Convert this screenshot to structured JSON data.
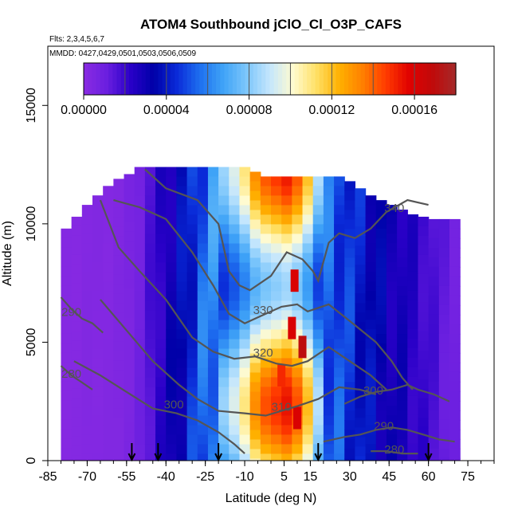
{
  "chart_data": {
    "type": "heatmap",
    "title": "ATOM4 Southbound jClO_Cl_O3P_CAFS",
    "flights_label": "Flts: 2,3,4,5,6,7",
    "dates_label": "MMDD: 0427,0429,0501,0503,0506,0509",
    "xlabel": "Latitude (deg N)",
    "ylabel": "Altitude (m)",
    "xlim": [
      -85,
      85
    ],
    "ylim": [
      0,
      17500
    ],
    "xticks": [
      "-85",
      "-70",
      "-55",
      "-40",
      "-25",
      "-10",
      "5",
      "15",
      "30",
      "45",
      "60",
      "75"
    ],
    "xtick_values": [
      -85,
      -70,
      -55,
      -40,
      -25,
      -10,
      5,
      15,
      30,
      45,
      60,
      75
    ],
    "yticks": [
      "0",
      "5000",
      "10000",
      "15000"
    ],
    "ytick_values": [
      0,
      5000,
      10000,
      15000
    ],
    "colorbar": {
      "min": 0,
      "max": 0.00018,
      "tick_labels": [
        "0.00000",
        "0.00004",
        "0.00008",
        "0.00012",
        "0.00016"
      ],
      "tick_values": [
        0,
        4e-05,
        8e-05,
        0.00012,
        0.00016
      ],
      "colors": [
        "#8a2be2",
        "#6a1fe0",
        "#2a00c8",
        "#0000a8",
        "#0a2ad8",
        "#1e70f0",
        "#3fa3f7",
        "#7cc6fb",
        "#c4e6fd",
        "#fffbd0",
        "#ffe066",
        "#ffb000",
        "#ff7f00",
        "#ff3a00",
        "#e00000",
        "#c00a0a",
        "#a52a2a"
      ]
    },
    "heat_columns": [
      {
        "lat": -78,
        "top": 9800,
        "v": 2e-06
      },
      {
        "lat": -74,
        "top": 10300,
        "v": 2e-06
      },
      {
        "lat": -70,
        "top": 10800,
        "v": 3e-06
      },
      {
        "lat": -66,
        "top": 11200,
        "v": 3e-06
      },
      {
        "lat": -62,
        "top": 11600,
        "v": 3e-06
      },
      {
        "lat": -58,
        "top": 11900,
        "v": 4e-06
      },
      {
        "lat": -54,
        "top": 12100,
        "v": 6e-06
      },
      {
        "lat": -50,
        "top": 12400,
        "v": 1e-05
      },
      {
        "lat": -46,
        "top": 12400,
        "v": 1.8e-05
      },
      {
        "lat": -42,
        "top": 12400,
        "v": 2.6e-05
      },
      {
        "lat": -38,
        "top": 12400,
        "v": 3.2e-05
      },
      {
        "lat": -34,
        "top": 12400,
        "v": 4e-05
      },
      {
        "lat": -30,
        "top": 12400,
        "v": 5e-05
      },
      {
        "lat": -26,
        "top": 12400,
        "v": 6e-05
      },
      {
        "lat": -22,
        "top": 12400,
        "v": 6.8e-05
      },
      {
        "lat": -18,
        "top": 12400,
        "v": 7.6e-05
      },
      {
        "lat": -14,
        "top": 12400,
        "v": 8.6e-05
      },
      {
        "lat": -10,
        "top": 12400,
        "v": 0.0001
      },
      {
        "lat": -6,
        "top": 12200,
        "v": 0.00012
      },
      {
        "lat": -2,
        "top": 12000,
        "v": 0.00013
      },
      {
        "lat": 2,
        "top": 12000,
        "v": 0.000135
      },
      {
        "lat": 6,
        "top": 12000,
        "v": 0.00014
      },
      {
        "lat": 10,
        "top": 12000,
        "v": 0.00013
      },
      {
        "lat": 14,
        "top": 12000,
        "v": 0.00011
      },
      {
        "lat": 18,
        "top": 12000,
        "v": 8e-05
      },
      {
        "lat": 22,
        "top": 12000,
        "v": 6e-05
      },
      {
        "lat": 26,
        "top": 12000,
        "v": 5.6e-05
      },
      {
        "lat": 30,
        "top": 11800,
        "v": 5e-05
      },
      {
        "lat": 34,
        "top": 11500,
        "v": 4.6e-05
      },
      {
        "lat": 38,
        "top": 11200,
        "v": 4e-05
      },
      {
        "lat": 42,
        "top": 11000,
        "v": 3.6e-05
      },
      {
        "lat": 46,
        "top": 10800,
        "v": 3.2e-05
      },
      {
        "lat": 50,
        "top": 10600,
        "v": 3e-05
      },
      {
        "lat": 54,
        "top": 10400,
        "v": 2.6e-05
      },
      {
        "lat": 58,
        "top": 10300,
        "v": 2.2e-05
      },
      {
        "lat": 62,
        "top": 10200,
        "v": 1.8e-05
      },
      {
        "lat": 66,
        "top": 10200,
        "v": 1.4e-05
      },
      {
        "lat": 70,
        "top": 10200,
        "v": 1e-05
      }
    ],
    "hot_spots": [
      {
        "lat": 8,
        "alt": 5600,
        "v": 0.00016
      },
      {
        "lat": 12,
        "alt": 4800,
        "v": 0.00017
      },
      {
        "lat": 10,
        "alt": 1800,
        "v": 0.00016
      },
      {
        "lat": 9,
        "alt": 7600,
        "v": 0.00016
      },
      {
        "lat": 4,
        "alt": 3600,
        "v": 0.00015
      }
    ],
    "contours": [
      {
        "label": "340",
        "label_lat": 47,
        "label_alt": 10500,
        "points": [
          [
            -48,
            12300
          ],
          [
            -40,
            11500
          ],
          [
            -28,
            11000
          ],
          [
            -20,
            10000
          ],
          [
            -16,
            8000
          ],
          [
            -12,
            7400
          ],
          [
            -8,
            7200
          ],
          [
            0,
            7800
          ],
          [
            6,
            8800
          ],
          [
            12,
            8500
          ],
          [
            16,
            8000
          ],
          [
            18,
            7600
          ],
          [
            22,
            9200
          ],
          [
            26,
            9600
          ],
          [
            32,
            9400
          ],
          [
            38,
            9800
          ],
          [
            44,
            10500
          ],
          [
            52,
            11000
          ],
          [
            60,
            10800
          ]
        ]
      },
      {
        "label": "330",
        "label_lat": -3,
        "label_alt": 6200,
        "points": [
          [
            -60,
            11000
          ],
          [
            -50,
            10700
          ],
          [
            -40,
            10200
          ],
          [
            -30,
            8800
          ],
          [
            -22,
            7400
          ],
          [
            -16,
            6200
          ],
          [
            -10,
            5800
          ],
          [
            -4,
            6100
          ],
          [
            4,
            6500
          ],
          [
            10,
            6600
          ],
          [
            14,
            6300
          ],
          [
            22,
            6600
          ],
          [
            30,
            5900
          ],
          [
            40,
            5000
          ],
          [
            46,
            4200
          ],
          [
            50,
            3500
          ],
          [
            54,
            3000
          ]
        ]
      },
      {
        "label": "320",
        "label_lat": -3,
        "label_alt": 4400,
        "points": [
          [
            -65,
            11000
          ],
          [
            -58,
            9000
          ],
          [
            -50,
            8000
          ],
          [
            -40,
            6800
          ],
          [
            -30,
            5200
          ],
          [
            -22,
            4600
          ],
          [
            -14,
            4300
          ],
          [
            -6,
            4400
          ],
          [
            2,
            4100
          ],
          [
            8,
            4000
          ],
          [
            14,
            4200
          ],
          [
            22,
            4800
          ],
          [
            30,
            4200
          ],
          [
            38,
            3600
          ],
          [
            44,
            3000
          ]
        ]
      },
      {
        "label": "310",
        "label_lat": 4,
        "label_alt": 2100,
        "points": [
          [
            -65,
            6800
          ],
          [
            -55,
            5500
          ],
          [
            -45,
            4200
          ],
          [
            -35,
            3200
          ],
          [
            -28,
            2600
          ],
          [
            -20,
            2100
          ],
          [
            -10,
            2000
          ],
          [
            -2,
            1900
          ],
          [
            4,
            2100
          ],
          [
            10,
            2300
          ],
          [
            18,
            2600
          ],
          [
            26,
            3100
          ],
          [
            34,
            3000
          ],
          [
            40,
            2800
          ]
        ]
      },
      {
        "label": "300",
        "label_lat": -37,
        "label_alt": 2200,
        "points": [
          [
            -75,
            4200
          ],
          [
            -65,
            3600
          ],
          [
            -55,
            2900
          ],
          [
            -45,
            2200
          ],
          [
            -36,
            2000
          ],
          [
            -28,
            1700
          ],
          [
            -20,
            1200
          ],
          [
            -14,
            700
          ],
          [
            -10,
            300
          ]
        ]
      },
      {
        "label": "300",
        "label_lat": 39,
        "label_alt": 2800,
        "points": [
          [
            28,
            2400
          ],
          [
            34,
            2700
          ],
          [
            40,
            2900
          ],
          [
            46,
            3000
          ],
          [
            52,
            3200
          ],
          [
            56,
            3000
          ],
          [
            62,
            2800
          ],
          [
            68,
            2500
          ]
        ]
      },
      {
        "label": "290",
        "label_lat": 43,
        "label_alt": 1300,
        "points": [
          [
            20,
            800
          ],
          [
            28,
            1000
          ],
          [
            34,
            1100
          ],
          [
            40,
            1300
          ],
          [
            46,
            1400
          ],
          [
            52,
            1300
          ],
          [
            58,
            1100
          ],
          [
            64,
            900
          ],
          [
            70,
            800
          ]
        ]
      },
      {
        "label": "290",
        "label_lat": -76,
        "label_alt": 6100,
        "points": [
          [
            -80,
            6900
          ],
          [
            -76,
            6400
          ],
          [
            -72,
            6000
          ],
          [
            -68,
            5800
          ],
          [
            -64,
            5400
          ]
        ]
      },
      {
        "label": "280",
        "label_lat": -76,
        "label_alt": 3500,
        "points": [
          [
            -80,
            4000
          ],
          [
            -76,
            3600
          ],
          [
            -72,
            3300
          ],
          [
            -68,
            3000
          ]
        ]
      },
      {
        "label": "280",
        "label_lat": 47,
        "label_alt": 300,
        "points": [
          [
            38,
            400
          ],
          [
            44,
            400
          ],
          [
            50,
            300
          ],
          [
            56,
            300
          ]
        ]
      }
    ],
    "flight_arrows_lat": [
      -53,
      -43,
      -20,
      18,
      60
    ]
  }
}
